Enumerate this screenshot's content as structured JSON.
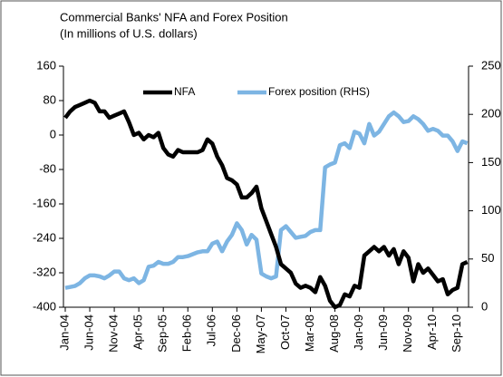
{
  "chart_data": {
    "type": "line",
    "title": "Commercial Banks' NFA and Forex Position",
    "subtitle": "(In millions of U.S. dollars)",
    "categories": [
      "Jan-04",
      null,
      null,
      null,
      null,
      "Jun-04",
      null,
      null,
      null,
      null,
      "Nov-04",
      null,
      null,
      null,
      null,
      "Apr-05",
      null,
      null,
      null,
      null,
      "Sep-05",
      null,
      null,
      null,
      null,
      "Feb-06",
      null,
      null,
      null,
      null,
      "Jul-06",
      null,
      null,
      null,
      null,
      "Dec-06",
      null,
      null,
      null,
      null,
      "May-07",
      null,
      null,
      null,
      null,
      "Oct-07",
      null,
      null,
      null,
      null,
      "Mar-08",
      null,
      null,
      null,
      null,
      "Aug-08",
      null,
      null,
      null,
      null,
      "Jan-09",
      null,
      null,
      null,
      null,
      "Jun-09",
      null,
      null,
      null,
      null,
      "Nov-09",
      null,
      null,
      null,
      null,
      "Apr-10",
      null,
      null,
      null,
      null,
      "Sep-10",
      null,
      null
    ],
    "series": [
      {
        "name": "NFA",
        "color": "#000000",
        "axis": "y",
        "values": [
          40,
          55,
          65,
          70,
          75,
          80,
          75,
          55,
          55,
          40,
          45,
          50,
          55,
          30,
          0,
          5,
          -10,
          0,
          -5,
          5,
          -30,
          -45,
          -50,
          -35,
          -40,
          -40,
          -40,
          -40,
          -35,
          -10,
          -20,
          -50,
          -70,
          -100,
          -105,
          -115,
          -145,
          -145,
          -135,
          -120,
          -170,
          -200,
          -230,
          -260,
          -300,
          -310,
          -320,
          -345,
          -355,
          -350,
          -355,
          -365,
          -330,
          -350,
          -385,
          -400,
          -395,
          -370,
          -375,
          -350,
          -355,
          -280,
          -270,
          -260,
          -270,
          -260,
          -280,
          -265,
          -300,
          -270,
          -285,
          -340,
          -300,
          -320,
          -310,
          -325,
          -340,
          -335,
          -370,
          -360,
          -355,
          -300,
          -295
        ]
      },
      {
        "name": "Forex position (RHS)",
        "color": "#7db5e3",
        "axis": "y2",
        "values": [
          20,
          21,
          22,
          25,
          30,
          33,
          33,
          32,
          30,
          33,
          37,
          37,
          30,
          28,
          30,
          25,
          28,
          42,
          43,
          47,
          45,
          45,
          47,
          52,
          52,
          53,
          55,
          57,
          58,
          58,
          66,
          68,
          58,
          68,
          75,
          87,
          80,
          65,
          75,
          70,
          35,
          32,
          30,
          32,
          80,
          84,
          78,
          72,
          73,
          74,
          78,
          80,
          80,
          145,
          148,
          150,
          168,
          170,
          165,
          182,
          180,
          170,
          190,
          178,
          182,
          190,
          198,
          202,
          198,
          192,
          193,
          198,
          195,
          190,
          183,
          185,
          183,
          178,
          178,
          172,
          162,
          172,
          170
        ]
      }
    ],
    "ylim": [
      -400,
      160
    ],
    "yticks": [
      160,
      80,
      0,
      -80,
      -160,
      -240,
      -320,
      -400
    ],
    "y2lim": [
      0,
      250
    ],
    "y2ticks": [
      0,
      50,
      100,
      150,
      200,
      250
    ]
  }
}
